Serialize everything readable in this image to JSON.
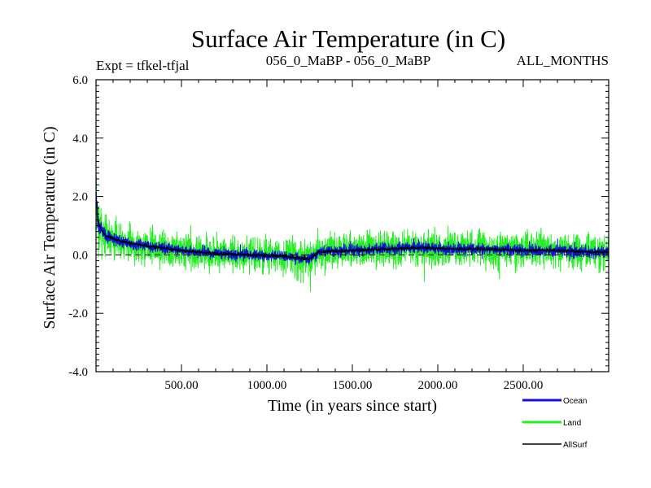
{
  "chart_data": {
    "type": "line",
    "title": "Surface Air Temperature (in C)",
    "header": {
      "left": "Expt = tfkel-tfjal",
      "center": "056_0_MaBP - 056_0_MaBP",
      "right": "ALL_MONTHS"
    },
    "xlabel": "Time (in years since start)",
    "ylabel": "Surface Air Temperature (in C)",
    "xlim": [
      0,
      3000
    ],
    "ylim": [
      -4.0,
      6.0
    ],
    "x_ticks": [
      500,
      1000,
      1500,
      2000,
      2500
    ],
    "x_tick_labels": [
      "500.00",
      "1000.00",
      "1500.00",
      "2000.00",
      "2500.00"
    ],
    "y_ticks": [
      -4.0,
      -2.0,
      0.0,
      2.0,
      4.0,
      6.0
    ],
    "y_tick_labels": [
      "-4.0",
      "-2.0",
      "0.0",
      "2.0",
      "4.0",
      "6.0"
    ],
    "zero_line": "dashed",
    "legend_placement": "bottom-right",
    "series": [
      {
        "name": "Land",
        "color": "#22ee22",
        "envelope": {
          "x": [
            0,
            10,
            30,
            60,
            100,
            200,
            300,
            500,
            700,
            900,
            1100,
            1250,
            1300,
            1500,
            1700,
            1900,
            2100,
            2300,
            2500,
            2700,
            2900,
            3000
          ],
          "mean": [
            2.0,
            1.3,
            0.9,
            0.7,
            0.55,
            0.4,
            0.3,
            0.15,
            0.05,
            0.0,
            -0.05,
            -0.2,
            0.1,
            0.15,
            0.2,
            0.25,
            0.2,
            0.2,
            0.15,
            0.15,
            0.1,
            0.1
          ],
          "amplitude": [
            2.5,
            1.6,
            1.2,
            1.0,
            0.9,
            0.9,
            0.9,
            0.9,
            0.9,
            0.9,
            0.9,
            1.0,
            0.9,
            0.9,
            0.9,
            0.9,
            0.9,
            0.9,
            0.9,
            0.9,
            0.9,
            0.9
          ]
        }
      },
      {
        "name": "Ocean",
        "color": "#1010dd",
        "envelope": {
          "x": [
            0,
            10,
            30,
            60,
            100,
            200,
            300,
            500,
            700,
            900,
            1100,
            1250,
            1300,
            1500,
            1700,
            1900,
            2100,
            2300,
            2500,
            2700,
            2900,
            3000
          ],
          "mean": [
            2.1,
            1.2,
            0.85,
            0.65,
            0.55,
            0.4,
            0.3,
            0.15,
            0.05,
            0.0,
            -0.05,
            -0.15,
            0.1,
            0.15,
            0.2,
            0.25,
            0.2,
            0.2,
            0.15,
            0.15,
            0.1,
            0.1
          ],
          "amplitude": [
            0.6,
            0.4,
            0.35,
            0.3,
            0.3,
            0.3,
            0.3,
            0.28,
            0.28,
            0.28,
            0.28,
            0.3,
            0.3,
            0.3,
            0.3,
            0.3,
            0.3,
            0.3,
            0.3,
            0.3,
            0.3,
            0.3
          ]
        }
      },
      {
        "name": "AllSurf",
        "color": "#000000",
        "envelope": {
          "x": [
            0,
            10,
            30,
            60,
            100,
            200,
            300,
            500,
            700,
            900,
            1100,
            1250,
            1300,
            1500,
            1700,
            1900,
            2100,
            2300,
            2500,
            2700,
            2900,
            3000
          ],
          "mean": [
            2.0,
            1.2,
            0.85,
            0.65,
            0.55,
            0.4,
            0.3,
            0.15,
            0.05,
            0.0,
            -0.05,
            -0.15,
            0.1,
            0.15,
            0.2,
            0.25,
            0.2,
            0.2,
            0.15,
            0.15,
            0.1,
            0.1
          ],
          "amplitude": [
            0.2,
            0.1,
            0.08,
            0.08,
            0.08,
            0.08,
            0.08,
            0.08,
            0.08,
            0.08,
            0.08,
            0.08,
            0.08,
            0.08,
            0.08,
            0.08,
            0.08,
            0.08,
            0.08,
            0.08,
            0.08,
            0.08
          ]
        }
      }
    ]
  }
}
